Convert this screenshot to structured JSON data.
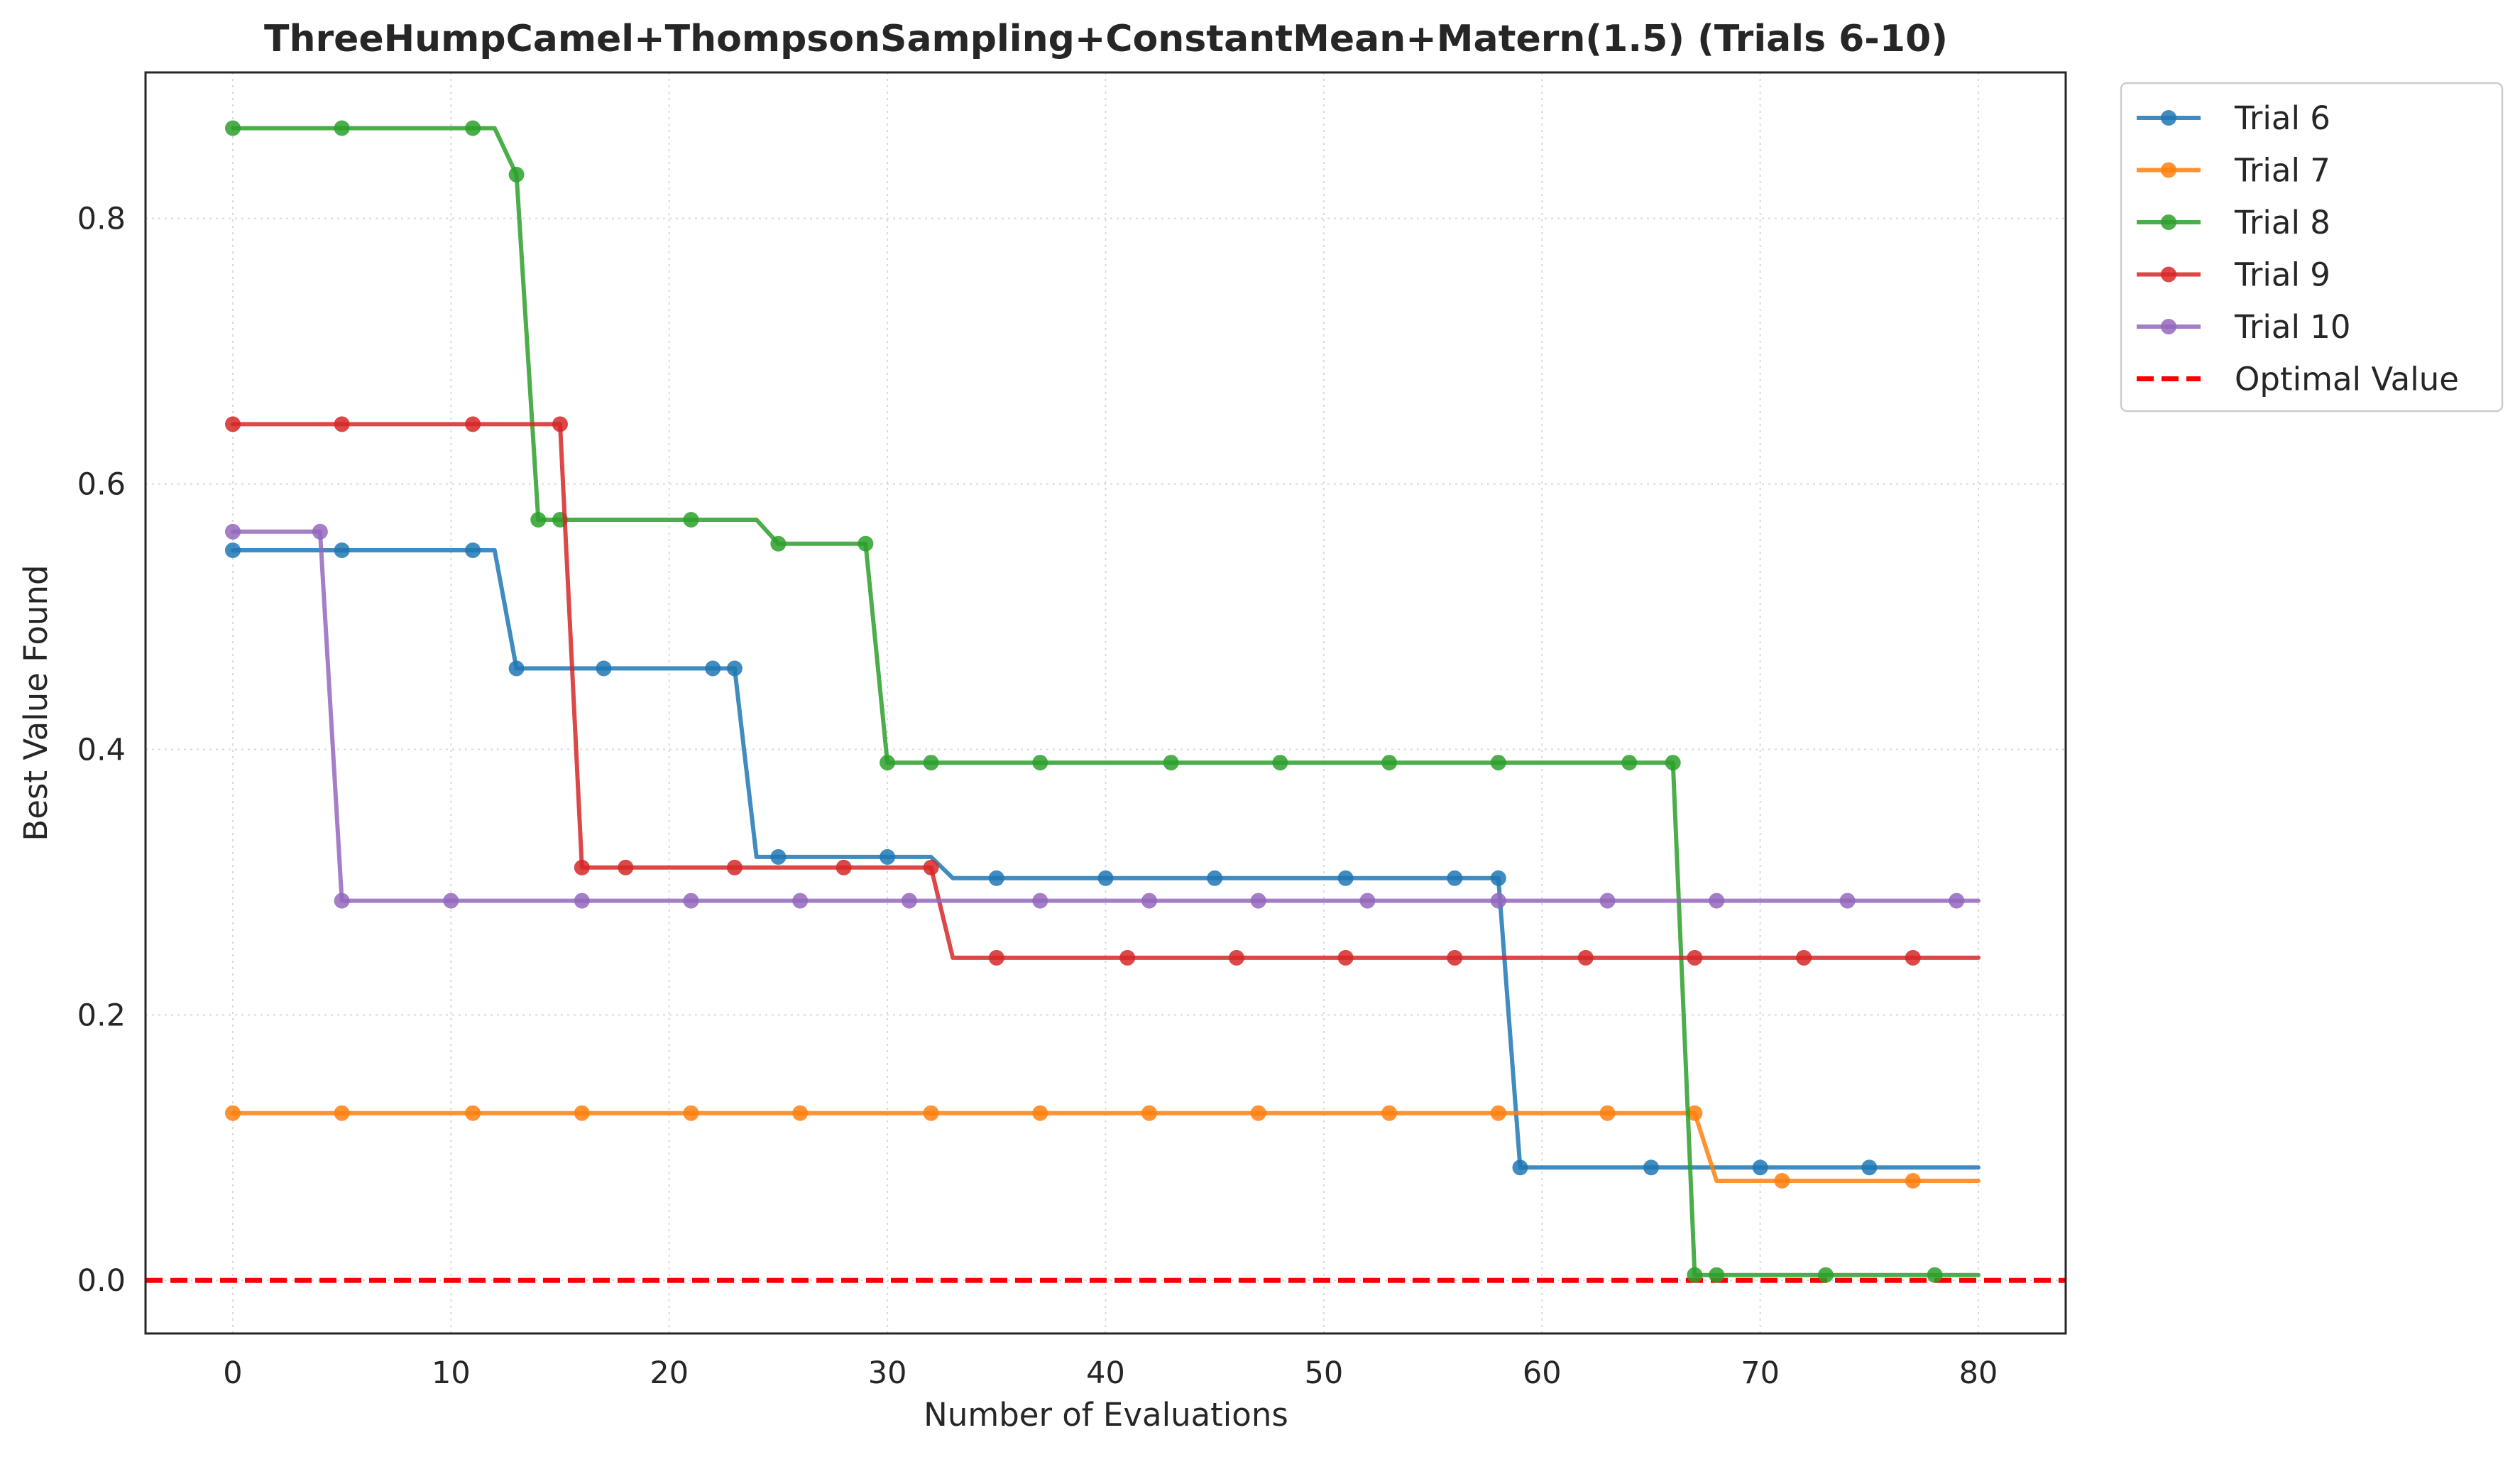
{
  "chart_data": {
    "type": "line",
    "title": "ThreeHumpCamel+ThompsonSampling+ConstantMean+Matern(1.5) (Trials 6-10)",
    "xlabel": "Number of Evaluations",
    "ylabel": "Best Value Found",
    "xlim": [
      -4,
      84
    ],
    "ylim": [
      -0.04,
      0.91
    ],
    "xticks": [
      0,
      10,
      20,
      30,
      40,
      50,
      60,
      70,
      80
    ],
    "yticks": [
      0.0,
      0.2,
      0.4,
      0.6,
      0.8
    ],
    "xtick_labels": [
      "0",
      "10",
      "20",
      "30",
      "40",
      "50",
      "60",
      "70",
      "80"
    ],
    "ytick_labels": [
      "0.0",
      "0.2",
      "0.4",
      "0.6",
      "0.8"
    ],
    "grid": true,
    "grid_style": "dotted",
    "legend_position": "outside top-right",
    "series": [
      {
        "name": "Trial 6",
        "color": "#1f77b4",
        "steps": [
          [
            0,
            0.55
          ],
          [
            12,
            0.55
          ],
          [
            13,
            0.461
          ],
          [
            23,
            0.461
          ],
          [
            24,
            0.319
          ],
          [
            32,
            0.319
          ],
          [
            33,
            0.303
          ],
          [
            58,
            0.303
          ],
          [
            59,
            0.085
          ],
          [
            80,
            0.085
          ]
        ],
        "markers": [
          [
            0,
            0.55
          ],
          [
            5,
            0.55
          ],
          [
            11,
            0.55
          ],
          [
            13,
            0.461
          ],
          [
            17,
            0.461
          ],
          [
            22,
            0.461
          ],
          [
            23,
            0.461
          ],
          [
            25,
            0.319
          ],
          [
            30,
            0.319
          ],
          [
            35,
            0.303
          ],
          [
            40,
            0.303
          ],
          [
            45,
            0.303
          ],
          [
            51,
            0.303
          ],
          [
            56,
            0.303
          ],
          [
            58,
            0.303
          ],
          [
            59,
            0.085
          ],
          [
            65,
            0.085
          ],
          [
            70,
            0.085
          ],
          [
            75,
            0.085
          ]
        ]
      },
      {
        "name": "Trial 7",
        "color": "#ff7f0e",
        "steps": [
          [
            0,
            0.126
          ],
          [
            67,
            0.126
          ],
          [
            68,
            0.075
          ],
          [
            80,
            0.075
          ]
        ],
        "markers": [
          [
            0,
            0.126
          ],
          [
            5,
            0.126
          ],
          [
            11,
            0.126
          ],
          [
            16,
            0.126
          ],
          [
            21,
            0.126
          ],
          [
            26,
            0.126
          ],
          [
            32,
            0.126
          ],
          [
            37,
            0.126
          ],
          [
            42,
            0.126
          ],
          [
            47,
            0.126
          ],
          [
            53,
            0.126
          ],
          [
            58,
            0.126
          ],
          [
            63,
            0.126
          ],
          [
            67,
            0.126
          ],
          [
            71,
            0.075
          ],
          [
            77,
            0.075
          ]
        ]
      },
      {
        "name": "Trial 8",
        "color": "#2ca02c",
        "steps": [
          [
            0,
            0.868
          ],
          [
            12,
            0.868
          ],
          [
            13,
            0.833
          ],
          [
            14,
            0.573
          ],
          [
            24,
            0.573
          ],
          [
            25,
            0.555
          ],
          [
            29,
            0.555
          ],
          [
            30,
            0.39
          ],
          [
            66,
            0.39
          ],
          [
            67,
            0.004
          ],
          [
            80,
            0.004
          ]
        ],
        "markers": [
          [
            0,
            0.868
          ],
          [
            5,
            0.868
          ],
          [
            11,
            0.868
          ],
          [
            13,
            0.833
          ],
          [
            14,
            0.573
          ],
          [
            15,
            0.573
          ],
          [
            21,
            0.573
          ],
          [
            25,
            0.555
          ],
          [
            29,
            0.555
          ],
          [
            30,
            0.39
          ],
          [
            32,
            0.39
          ],
          [
            37,
            0.39
          ],
          [
            43,
            0.39
          ],
          [
            48,
            0.39
          ],
          [
            53,
            0.39
          ],
          [
            58,
            0.39
          ],
          [
            64,
            0.39
          ],
          [
            66,
            0.39
          ],
          [
            67,
            0.004
          ],
          [
            68,
            0.004
          ],
          [
            73,
            0.004
          ],
          [
            78,
            0.004
          ]
        ]
      },
      {
        "name": "Trial 9",
        "color": "#d62728",
        "steps": [
          [
            0,
            0.645
          ],
          [
            15,
            0.645
          ],
          [
            16,
            0.311
          ],
          [
            32,
            0.311
          ],
          [
            33,
            0.243
          ],
          [
            80,
            0.243
          ]
        ],
        "markers": [
          [
            0,
            0.645
          ],
          [
            5,
            0.645
          ],
          [
            11,
            0.645
          ],
          [
            15,
            0.645
          ],
          [
            16,
            0.311
          ],
          [
            18,
            0.311
          ],
          [
            23,
            0.311
          ],
          [
            28,
            0.311
          ],
          [
            32,
            0.311
          ],
          [
            35,
            0.243
          ],
          [
            41,
            0.243
          ],
          [
            46,
            0.243
          ],
          [
            51,
            0.243
          ],
          [
            56,
            0.243
          ],
          [
            62,
            0.243
          ],
          [
            67,
            0.243
          ],
          [
            72,
            0.243
          ],
          [
            77,
            0.243
          ]
        ]
      },
      {
        "name": "Trial 10",
        "color": "#9467bd",
        "steps": [
          [
            0,
            0.564
          ],
          [
            4,
            0.564
          ],
          [
            5,
            0.286
          ],
          [
            80,
            0.286
          ]
        ],
        "markers": [
          [
            0,
            0.564
          ],
          [
            4,
            0.564
          ],
          [
            5,
            0.286
          ],
          [
            10,
            0.286
          ],
          [
            16,
            0.286
          ],
          [
            21,
            0.286
          ],
          [
            26,
            0.286
          ],
          [
            31,
            0.286
          ],
          [
            37,
            0.286
          ],
          [
            42,
            0.286
          ],
          [
            47,
            0.286
          ],
          [
            52,
            0.286
          ],
          [
            58,
            0.286
          ],
          [
            63,
            0.286
          ],
          [
            68,
            0.286
          ],
          [
            74,
            0.286
          ],
          [
            79,
            0.286
          ]
        ]
      }
    ],
    "reference_line": {
      "name": "Optimal Value",
      "y": 0.0,
      "color": "#ff0000",
      "style": "dashed"
    }
  }
}
